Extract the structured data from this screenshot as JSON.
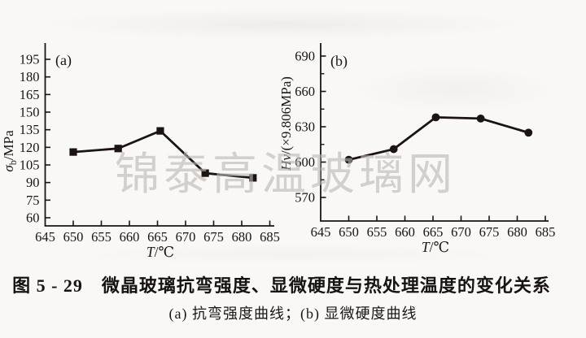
{
  "page": {
    "background_color": "#faf8f6",
    "ink_color": "#1b1410"
  },
  "watermark": {
    "text": "锦泰高温玻璃网",
    "color": "#bcb7b4"
  },
  "figure_caption": {
    "title": "图 5 - 29　微晶玻璃抗弯强度、显微硬度与热处理温度的变化关系",
    "subtitle": "(a) 抗弯强度曲线；(b) 显微硬度曲线"
  },
  "chart_data": [
    {
      "type": "line",
      "panel_label": "(a)",
      "series_name": "抗弯强度曲线",
      "x": [
        650,
        658,
        665.5,
        673.5,
        682
      ],
      "values": [
        116,
        119,
        134,
        98,
        94
      ],
      "xlabel": "T/℃",
      "xlabel_segments": [
        {
          "t": "T",
          "style": "italic"
        },
        {
          "t": "/℃",
          "style": ""
        }
      ],
      "ylabel": "σb/MPa",
      "ylabel_segments": [
        {
          "t": "σ",
          "style": "italic"
        },
        {
          "t": "b",
          "style": "sub"
        },
        {
          "t": "/MPa",
          "style": ""
        }
      ],
      "xlim": [
        645,
        685
      ],
      "ylim": [
        60,
        195
      ],
      "xticks": [
        645,
        650,
        655,
        660,
        665,
        670,
        675,
        680,
        685
      ],
      "yticks": [
        60,
        75,
        90,
        105,
        120,
        135,
        150,
        165,
        180,
        195
      ],
      "yticks_minor": [],
      "marker": "square",
      "line_color": "#1b1410",
      "grid": false,
      "legend": "none"
    },
    {
      "type": "line",
      "panel_label": "(b)",
      "series_name": "显微硬度曲线",
      "x": [
        650,
        658,
        665.5,
        673.5,
        682
      ],
      "values": [
        602,
        611,
        638,
        637,
        625
      ],
      "xlabel": "T/℃",
      "xlabel_segments": [
        {
          "t": "T",
          "style": "italic"
        },
        {
          "t": "/℃",
          "style": ""
        }
      ],
      "ylabel": "Hv/(×9.806MPa)",
      "ylabel_segments": [
        {
          "t": "Hv",
          "style": "italic"
        },
        {
          "t": "/(×9.806MPa)",
          "style": ""
        }
      ],
      "xlim": [
        645,
        685
      ],
      "ylim": [
        555,
        700
      ],
      "xticks": [
        645,
        650,
        655,
        660,
        665,
        670,
        675,
        680,
        685
      ],
      "yticks": [
        570,
        600,
        630,
        660,
        690
      ],
      "yticks_minor": [
        585,
        615,
        645,
        675
      ],
      "marker": "circle",
      "line_color": "#1b1410",
      "grid": false,
      "legend": "none"
    }
  ]
}
